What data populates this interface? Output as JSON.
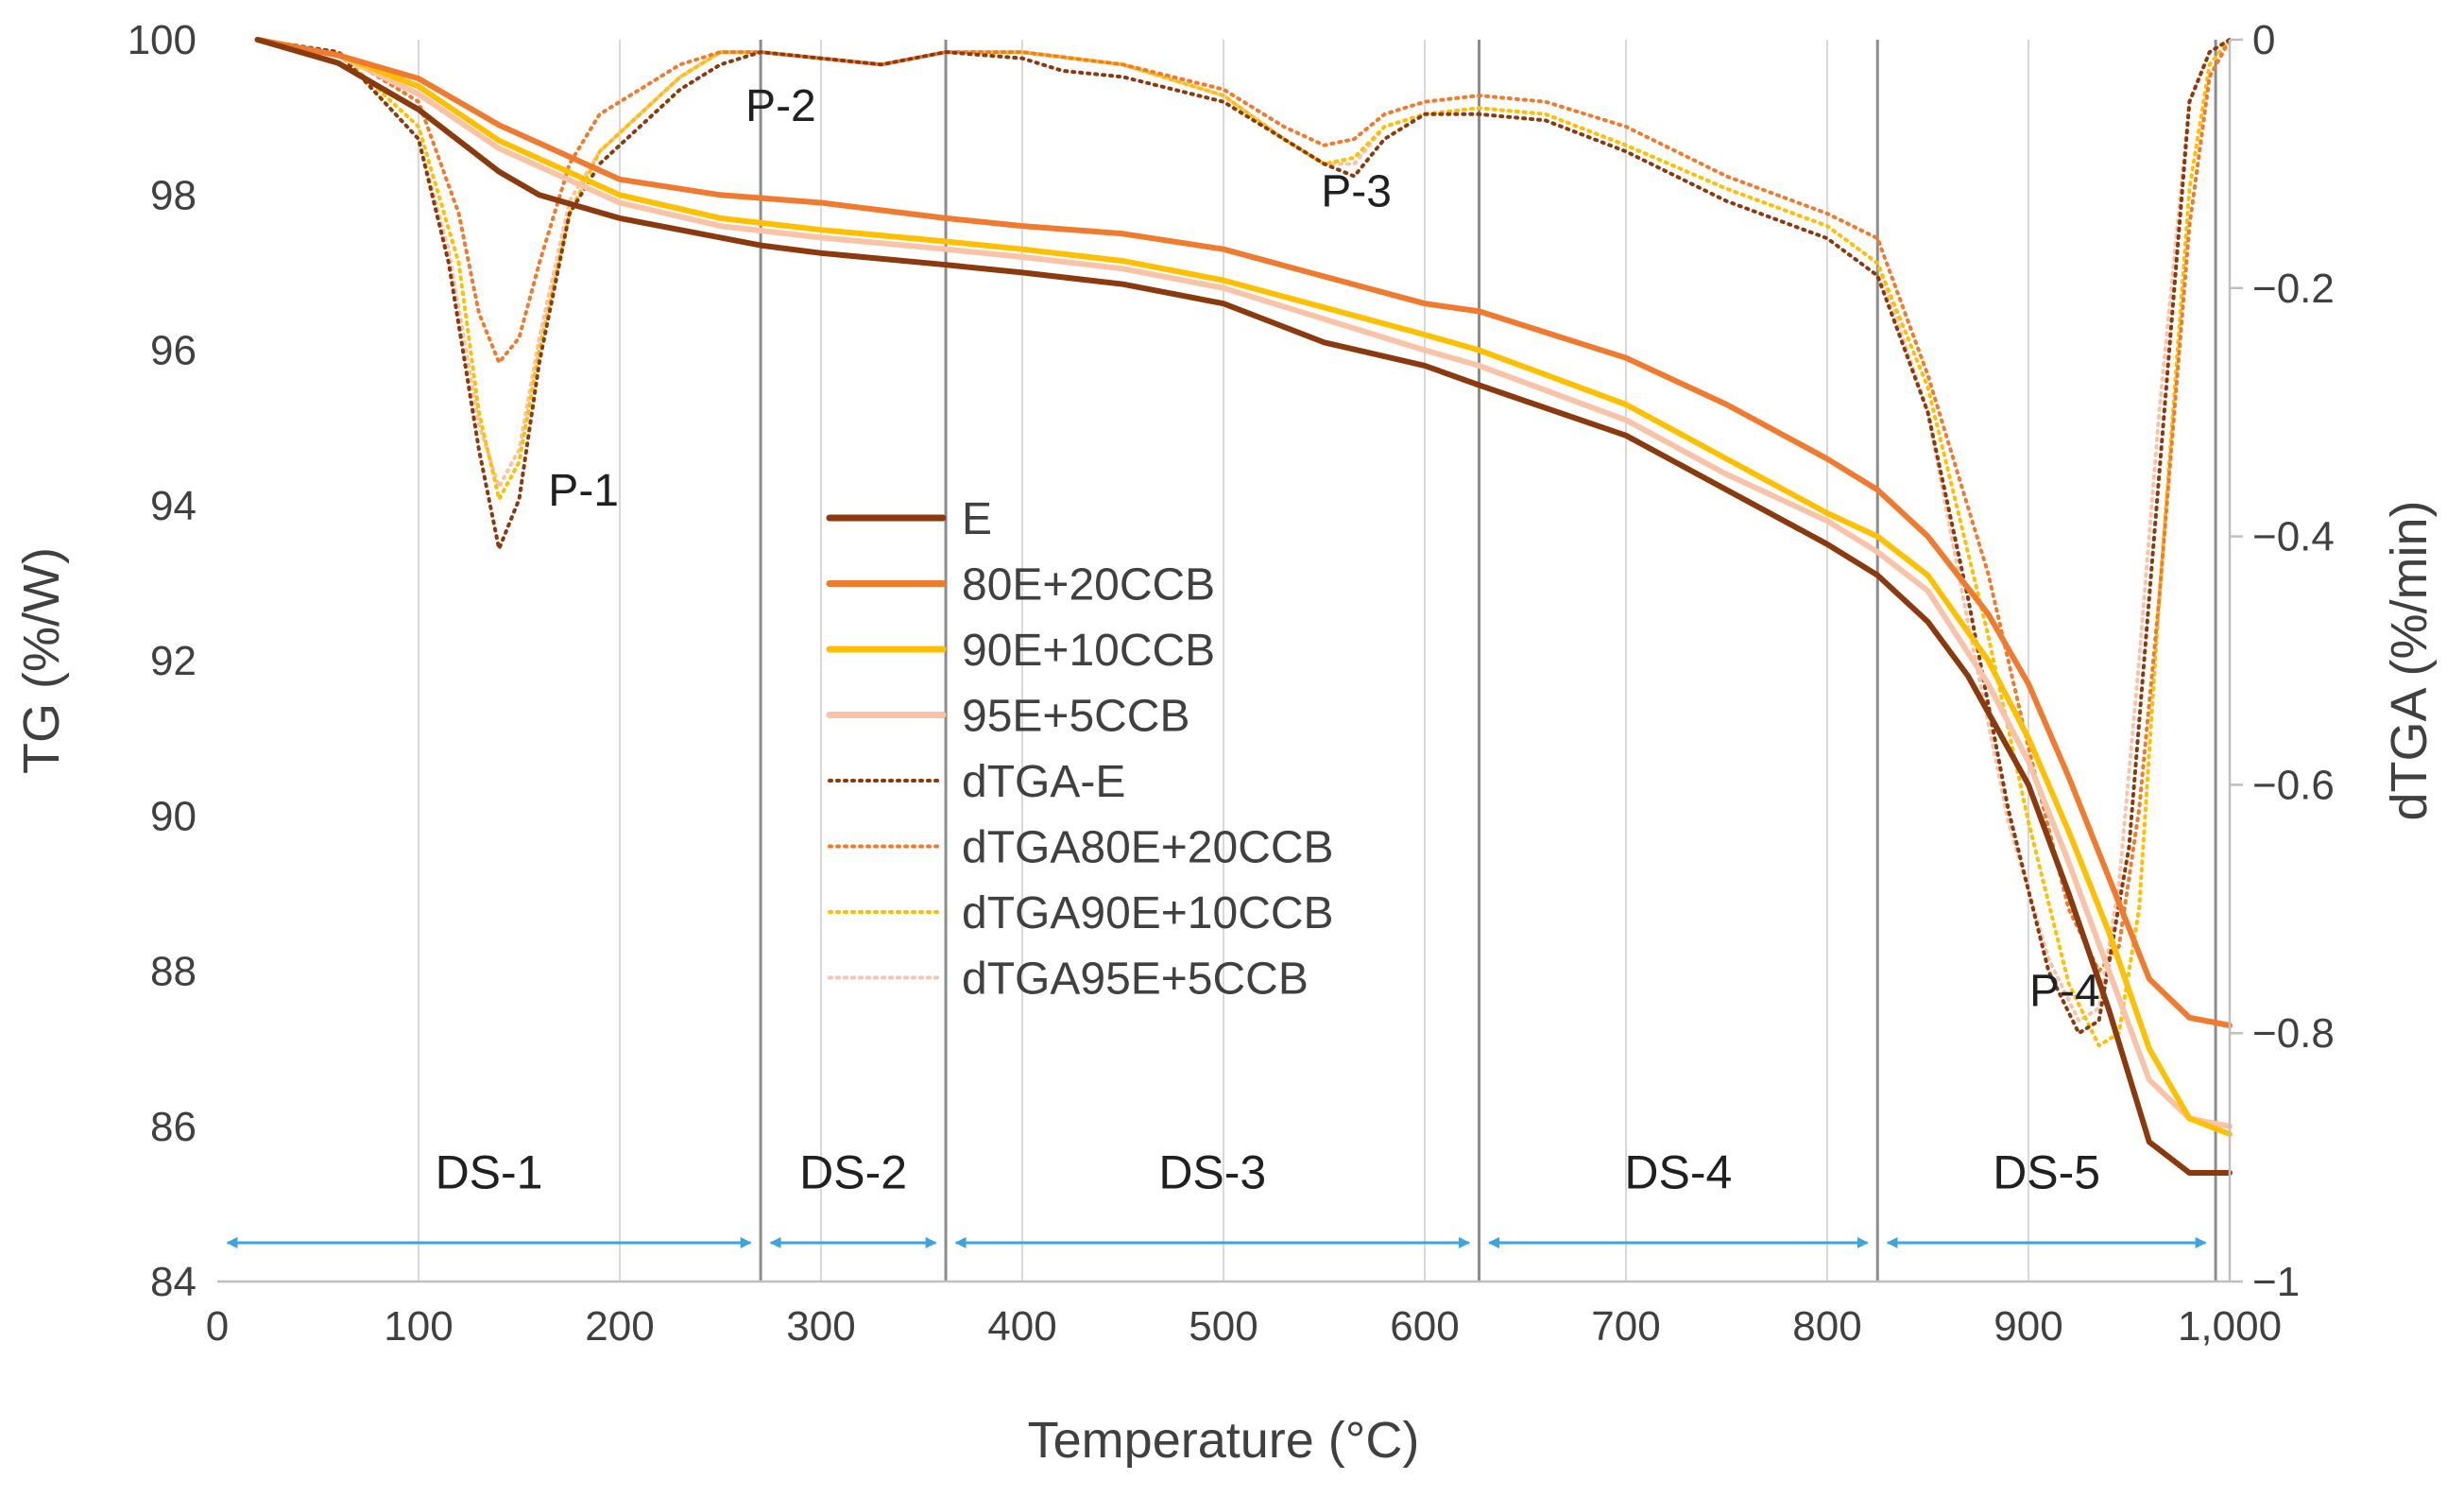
{
  "chart_data": {
    "type": "line",
    "xlabel": "Temperature (°C)",
    "ylabel": "TG (%/W)",
    "y2label": "dTGA (%/min)",
    "xlim": [
      0,
      1000
    ],
    "ylim": [
      84,
      100
    ],
    "y2lim": [
      -1,
      0
    ],
    "x_ticks": [
      {
        "value": 0,
        "label": "0"
      },
      {
        "value": 100,
        "label": "100"
      },
      {
        "value": 200,
        "label": "200"
      },
      {
        "value": 300,
        "label": "300"
      },
      {
        "value": 400,
        "label": "400"
      },
      {
        "value": 500,
        "label": "500"
      },
      {
        "value": 600,
        "label": "600"
      },
      {
        "value": 700,
        "label": "700"
      },
      {
        "value": 800,
        "label": "800"
      },
      {
        "value": 900,
        "label": "900"
      },
      {
        "value": 1000,
        "label": "1,000"
      }
    ],
    "y_ticks": [
      {
        "value": 84,
        "label": "84"
      },
      {
        "value": 86,
        "label": "86"
      },
      {
        "value": 88,
        "label": "88"
      },
      {
        "value": 90,
        "label": "90"
      },
      {
        "value": 92,
        "label": "92"
      },
      {
        "value": 94,
        "label": "94"
      },
      {
        "value": 96,
        "label": "96"
      },
      {
        "value": 98,
        "label": "98"
      },
      {
        "value": 100,
        "label": "100"
      }
    ],
    "y2_ticks": [
      {
        "value": 0,
        "label": "0"
      },
      {
        "value": -0.2,
        "label": "−0.2"
      },
      {
        "value": -0.4,
        "label": "−0.4"
      },
      {
        "value": -0.6,
        "label": "−0.6"
      },
      {
        "value": -0.8,
        "label": "−0.8"
      },
      {
        "value": -1,
        "label": "−1"
      }
    ],
    "grid": {
      "vertical": true,
      "horizontal": false
    },
    "vlines": [
      270,
      362,
      627,
      825,
      993
    ],
    "series": [
      {
        "name": "E",
        "axis": "left",
        "style": "solid",
        "color": "#8B3A0E",
        "x": [
          20,
          60,
          100,
          120,
          140,
          160,
          200,
          240,
          270,
          300,
          362,
          400,
          450,
          500,
          550,
          600,
          627,
          700,
          750,
          800,
          825,
          850,
          870,
          900,
          920,
          940,
          960,
          980,
          1000
        ],
        "y": [
          100,
          99.7,
          99.1,
          98.7,
          98.3,
          98.0,
          97.7,
          97.5,
          97.35,
          97.25,
          97.1,
          97.0,
          96.85,
          96.6,
          96.1,
          95.8,
          95.55,
          94.9,
          94.2,
          93.5,
          93.1,
          92.5,
          91.8,
          90.4,
          89.0,
          87.5,
          85.8,
          85.4,
          85.4
        ]
      },
      {
        "name": "80E+20CCB",
        "axis": "left",
        "style": "solid",
        "color": "#F07A2E",
        "x": [
          20,
          60,
          100,
          140,
          200,
          250,
          300,
          362,
          400,
          450,
          500,
          550,
          600,
          627,
          700,
          750,
          800,
          825,
          850,
          880,
          900,
          920,
          940,
          960,
          980,
          1000
        ],
        "y": [
          100,
          99.8,
          99.5,
          98.9,
          98.2,
          98.0,
          97.9,
          97.7,
          97.6,
          97.5,
          97.3,
          96.95,
          96.6,
          96.5,
          95.9,
          95.3,
          94.6,
          94.2,
          93.6,
          92.6,
          91.7,
          90.5,
          89.2,
          87.9,
          87.4,
          87.3
        ]
      },
      {
        "name": "90E+10CCB",
        "axis": "left",
        "style": "solid",
        "color": "#FFC000",
        "x": [
          20,
          60,
          100,
          140,
          200,
          250,
          300,
          362,
          400,
          450,
          500,
          550,
          600,
          627,
          700,
          750,
          800,
          825,
          850,
          880,
          900,
          920,
          940,
          960,
          980,
          1000
        ],
        "y": [
          100,
          99.8,
          99.4,
          98.7,
          98.0,
          97.7,
          97.55,
          97.4,
          97.3,
          97.15,
          96.9,
          96.55,
          96.2,
          96.0,
          95.3,
          94.6,
          93.9,
          93.6,
          93.1,
          92.0,
          91.0,
          89.8,
          88.5,
          87.0,
          86.1,
          85.9
        ]
      },
      {
        "name": "95E+5CCB",
        "axis": "left",
        "style": "solid",
        "color": "#F9C3A8",
        "x": [
          20,
          60,
          100,
          140,
          200,
          250,
          300,
          362,
          400,
          450,
          500,
          550,
          600,
          627,
          700,
          750,
          800,
          825,
          850,
          880,
          900,
          920,
          940,
          960,
          980,
          1000
        ],
        "y": [
          100,
          99.8,
          99.3,
          98.6,
          97.9,
          97.6,
          97.45,
          97.3,
          97.2,
          97.05,
          96.8,
          96.4,
          96.0,
          95.8,
          95.1,
          94.4,
          93.8,
          93.4,
          92.9,
          91.7,
          90.7,
          89.4,
          88.0,
          86.6,
          86.1,
          86.0
        ]
      },
      {
        "name": "dTGA-E",
        "axis": "right",
        "style": "dotted",
        "color": "#8B3A0E",
        "x": [
          20,
          60,
          100,
          115,
          130,
          140,
          150,
          160,
          175,
          190,
          210,
          230,
          250,
          270,
          300,
          330,
          362,
          400,
          420,
          450,
          500,
          530,
          550,
          565,
          580,
          600,
          627,
          660,
          700,
          750,
          800,
          825,
          850,
          870,
          890,
          910,
          925,
          935,
          950,
          965,
          980,
          990,
          1000
        ],
        "y": [
          0,
          -0.01,
          -0.08,
          -0.18,
          -0.33,
          -0.41,
          -0.37,
          -0.26,
          -0.14,
          -0.1,
          -0.07,
          -0.04,
          -0.02,
          -0.01,
          -0.015,
          -0.02,
          -0.01,
          -0.015,
          -0.025,
          -0.03,
          -0.05,
          -0.08,
          -0.1,
          -0.11,
          -0.08,
          -0.06,
          -0.06,
          -0.065,
          -0.09,
          -0.13,
          -0.16,
          -0.19,
          -0.3,
          -0.45,
          -0.62,
          -0.75,
          -0.8,
          -0.79,
          -0.65,
          -0.35,
          -0.05,
          -0.01,
          0
        ]
      },
      {
        "name": "dTGA80E+20CCB",
        "axis": "right",
        "style": "dotted",
        "color": "#F07A2E",
        "x": [
          20,
          60,
          100,
          120,
          130,
          140,
          150,
          160,
          175,
          190,
          210,
          230,
          250,
          270,
          300,
          330,
          362,
          400,
          450,
          500,
          530,
          550,
          565,
          580,
          600,
          627,
          660,
          700,
          750,
          800,
          825,
          850,
          880,
          900,
          920,
          935,
          945,
          955,
          965,
          980,
          990,
          1000
        ],
        "y": [
          0,
          -0.01,
          -0.05,
          -0.14,
          -0.22,
          -0.26,
          -0.24,
          -0.18,
          -0.1,
          -0.06,
          -0.04,
          -0.02,
          -0.01,
          -0.01,
          -0.015,
          -0.02,
          -0.01,
          -0.01,
          -0.02,
          -0.04,
          -0.07,
          -0.085,
          -0.08,
          -0.06,
          -0.05,
          -0.045,
          -0.05,
          -0.07,
          -0.11,
          -0.14,
          -0.16,
          -0.27,
          -0.43,
          -0.57,
          -0.7,
          -0.75,
          -0.73,
          -0.62,
          -0.45,
          -0.15,
          -0.03,
          0
        ]
      },
      {
        "name": "dTGA90E+10CCB",
        "axis": "right",
        "style": "dotted",
        "color": "#FFC000",
        "x": [
          20,
          60,
          100,
          120,
          130,
          140,
          150,
          160,
          175,
          190,
          210,
          230,
          250,
          270,
          300,
          330,
          362,
          400,
          450,
          500,
          530,
          550,
          565,
          580,
          600,
          627,
          660,
          700,
          750,
          800,
          825,
          850,
          880,
          900,
          920,
          935,
          945,
          955,
          965,
          980,
          990,
          1000
        ],
        "y": [
          0,
          -0.01,
          -0.07,
          -0.18,
          -0.3,
          -0.37,
          -0.34,
          -0.25,
          -0.14,
          -0.09,
          -0.06,
          -0.03,
          -0.01,
          -0.01,
          -0.015,
          -0.02,
          -0.01,
          -0.01,
          -0.02,
          -0.045,
          -0.08,
          -0.1,
          -0.095,
          -0.07,
          -0.06,
          -0.055,
          -0.06,
          -0.085,
          -0.12,
          -0.15,
          -0.18,
          -0.28,
          -0.48,
          -0.63,
          -0.76,
          -0.81,
          -0.8,
          -0.7,
          -0.45,
          -0.12,
          -0.02,
          0
        ]
      },
      {
        "name": "dTGA95E+5CCB",
        "axis": "right",
        "style": "dotted",
        "color": "#F9C3A8",
        "x": [
          20,
          60,
          100,
          115,
          130,
          140,
          150,
          160,
          175,
          190,
          210,
          230,
          250,
          270,
          300,
          330,
          362,
          400,
          450,
          500,
          530,
          550,
          565,
          580,
          600,
          627,
          660,
          700,
          750,
          800,
          825,
          850,
          870,
          890,
          910,
          925,
          935,
          945,
          955,
          965,
          980,
          990,
          1000
        ],
        "y": [
          0,
          -0.01,
          -0.08,
          -0.17,
          -0.31,
          -0.36,
          -0.33,
          -0.24,
          -0.13,
          -0.09,
          -0.06,
          -0.03,
          -0.01,
          -0.01,
          -0.015,
          -0.02,
          -0.01,
          -0.01,
          -0.02,
          -0.045,
          -0.08,
          -0.1,
          -0.1,
          -0.07,
          -0.06,
          -0.055,
          -0.06,
          -0.085,
          -0.12,
          -0.15,
          -0.18,
          -0.3,
          -0.47,
          -0.63,
          -0.74,
          -0.79,
          -0.78,
          -0.68,
          -0.5,
          -0.3,
          -0.05,
          -0.01,
          0
        ]
      }
    ],
    "peak_labels": [
      {
        "text": "P-1",
        "x": 182,
        "y": 94.0
      },
      {
        "text": "P-2",
        "x": 280,
        "y": 98.95
      },
      {
        "text": "P-3",
        "x": 566,
        "y": 97.85
      },
      {
        "text": "P-4",
        "x": 918,
        "y": 87.55
      }
    ],
    "stages": [
      {
        "label": "DS-1",
        "start": 5,
        "end": 265
      },
      {
        "label": "DS-2",
        "start": 275,
        "end": 357
      },
      {
        "label": "DS-3",
        "start": 367,
        "end": 622
      },
      {
        "label": "DS-4",
        "start": 632,
        "end": 820
      },
      {
        "label": "DS-5",
        "start": 830,
        "end": 988
      }
    ],
    "stage_label_y": 85.2,
    "stage_arrow_y": 84.5,
    "arrow_color": "#3FA3DC"
  }
}
